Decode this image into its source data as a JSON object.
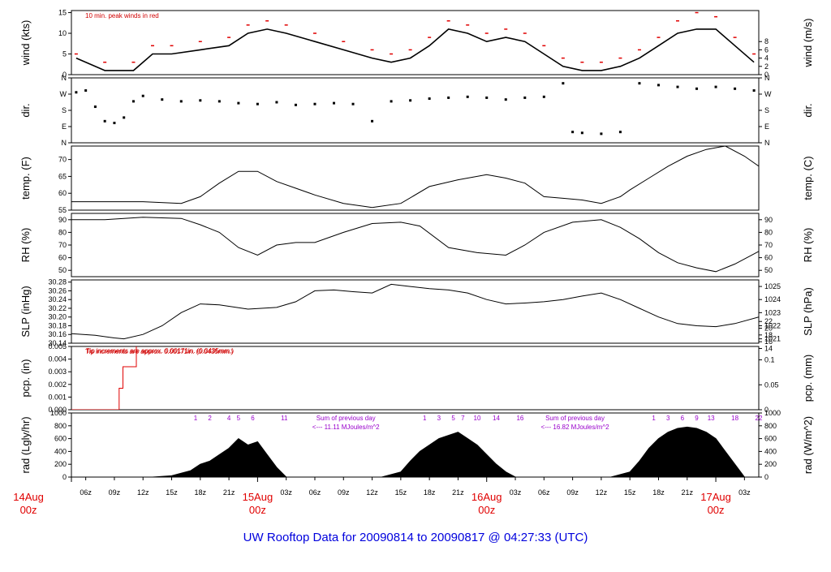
{
  "colors": {
    "frame": "#000000",
    "accent_red": "#e00000",
    "purple": "#9900cc",
    "title_blue": "#0000dd"
  },
  "title": "UW Rooftop Data for 20090814  to  20090817 @ 04:27:33  (UTC)",
  "x_axis": {
    "hour_labels": [
      "06z",
      "09z",
      "12z",
      "15z",
      "18z",
      "21z",
      "03z",
      "06z",
      "09z",
      "12z",
      "15z",
      "18z",
      "21z",
      "03z",
      "06z",
      "09z",
      "12z",
      "15z",
      "18z",
      "21z",
      "03z"
    ],
    "hour_values": [
      6,
      9,
      12,
      15,
      18,
      21,
      27,
      30,
      33,
      36,
      39,
      42,
      45,
      51,
      54,
      57,
      60,
      63,
      66,
      69,
      75
    ],
    "day_labels": [
      {
        "top": "14Aug",
        "bottom": "00z",
        "hour": 0
      },
      {
        "top": "15Aug",
        "bottom": "00z",
        "hour": 24
      },
      {
        "top": "16Aug",
        "bottom": "00z",
        "hour": 48
      },
      {
        "top": "17Aug",
        "bottom": "00z",
        "hour": 72
      }
    ],
    "range_hours": [
      4.5,
      76.5
    ]
  },
  "chart_data": [
    {
      "type": "line",
      "name": "wind",
      "ylabel_left": "wind (kts)",
      "ylabel_right": "wind (m/s)",
      "ylim": [
        0,
        15.5
      ],
      "left_ticks": [
        "0",
        "5",
        "10",
        "15"
      ],
      "left_tick_values": [
        0,
        5,
        10,
        15
      ],
      "right_ticks": [
        "0",
        "2",
        "4",
        "6",
        "8"
      ],
      "right_tick_values": [
        0,
        2,
        4,
        6,
        8
      ],
      "annotation": "10 min. peak winds in red",
      "x": [
        5,
        8,
        11,
        13,
        15,
        18,
        21,
        23,
        25,
        27,
        30,
        33,
        36,
        38,
        40,
        42,
        44,
        46,
        48,
        50,
        52,
        54,
        56,
        58,
        60,
        62,
        64,
        66,
        68,
        70,
        72,
        74,
        76
      ],
      "values": [
        4,
        1,
        1,
        5,
        5,
        6,
        7,
        10,
        11,
        10,
        8,
        6,
        4,
        3,
        4,
        7,
        11,
        10,
        8,
        9,
        8,
        5,
        2,
        1,
        1,
        2,
        4,
        7,
        10,
        11,
        11,
        7,
        3
      ],
      "peaks": [
        5,
        3,
        3,
        7,
        7,
        8,
        9,
        12,
        13,
        12,
        10,
        8,
        6,
        5,
        6,
        9,
        13,
        12,
        10,
        11,
        10,
        7,
        4,
        3,
        3,
        4,
        6,
        9,
        13,
        15,
        14,
        9,
        5
      ]
    },
    {
      "type": "scatter",
      "name": "dir",
      "ylabel_left": "dir.",
      "ylabel_right": "dir.",
      "ylim": [
        0,
        360
      ],
      "left_ticks": [
        "N",
        "E",
        "S",
        "W",
        "N"
      ],
      "left_tick_values": [
        0,
        90,
        180,
        270,
        360
      ],
      "right_ticks": [
        "N",
        "E",
        "S",
        "W",
        "N"
      ],
      "right_tick_values": [
        0,
        90,
        180,
        270,
        360
      ],
      "x": [
        5,
        6,
        7,
        8,
        9,
        10,
        11,
        12,
        14,
        16,
        18,
        20,
        22,
        24,
        26,
        28,
        30,
        32,
        34,
        36,
        38,
        40,
        42,
        44,
        46,
        48,
        50,
        52,
        54,
        56,
        57,
        58,
        60,
        62,
        64,
        66,
        68,
        70,
        72,
        74,
        76
      ],
      "values": [
        280,
        290,
        200,
        120,
        110,
        140,
        230,
        260,
        240,
        230,
        235,
        230,
        220,
        215,
        225,
        210,
        215,
        220,
        215,
        120,
        230,
        235,
        245,
        250,
        255,
        250,
        240,
        250,
        255,
        330,
        60,
        55,
        50,
        60,
        330,
        320,
        310,
        300,
        310,
        300,
        290
      ]
    },
    {
      "type": "line",
      "name": "temp",
      "ylabel_left": "temp. (F)",
      "ylabel_right": "temp. (C)",
      "ylim": [
        55,
        74
      ],
      "left_ticks": [
        "55",
        "60",
        "65",
        "70"
      ],
      "left_tick_values": [
        55,
        60,
        65,
        70
      ],
      "right_ticks": [
        "14",
        "16",
        "18",
        "20",
        "22"
      ],
      "right_tick_values": [
        14,
        16,
        18,
        20,
        22
      ],
      "x": [
        4.5,
        8,
        12,
        16,
        18,
        20,
        22,
        24,
        26,
        28,
        30,
        33,
        36,
        39,
        42,
        45,
        48,
        50,
        52,
        54,
        56,
        58,
        60,
        62,
        63,
        65,
        67,
        69,
        71,
        73,
        75,
        76.5
      ],
      "values": [
        57.5,
        57.5,
        57.5,
        57,
        59,
        63,
        66.5,
        66.5,
        63.5,
        61.5,
        59.5,
        57,
        55.8,
        57,
        62,
        64,
        65.5,
        64.5,
        63,
        59,
        58.5,
        58,
        57,
        59,
        61,
        64.5,
        68,
        71,
        73,
        74,
        71,
        68
      ]
    },
    {
      "type": "line",
      "name": "rh",
      "ylabel_left": "RH (%)",
      "ylabel_right": "RH (%)",
      "ylim": [
        45,
        95
      ],
      "left_ticks": [
        "50",
        "60",
        "70",
        "80",
        "90"
      ],
      "left_tick_values": [
        50,
        60,
        70,
        80,
        90
      ],
      "right_ticks": [
        "50",
        "60",
        "70",
        "80",
        "90"
      ],
      "right_tick_values": [
        50,
        60,
        70,
        80,
        90
      ],
      "x": [
        4.5,
        8,
        12,
        16,
        18,
        20,
        22,
        24,
        26,
        28,
        30,
        33,
        36,
        39,
        41,
        44,
        47,
        50,
        52,
        54,
        57,
        60,
        62,
        64,
        66,
        68,
        70,
        72,
        74,
        76.5
      ],
      "values": [
        90,
        90,
        92,
        91,
        86,
        80,
        68,
        62,
        70,
        72,
        72,
        80,
        87,
        88,
        85,
        68,
        64,
        62,
        70,
        80,
        88,
        90,
        84,
        75,
        64,
        56,
        52,
        49,
        55,
        65
      ]
    },
    {
      "type": "line",
      "name": "slp",
      "ylabel_left": "SLP (inHg)",
      "ylabel_right": "SLP (hPa)",
      "ylim": [
        30.14,
        30.285
      ],
      "left_ticks": [
        "30.14",
        "30.16",
        "30.18",
        "30.20",
        "30.22",
        "30.24",
        "30.26",
        "30.28"
      ],
      "left_tick_values": [
        30.14,
        30.16,
        30.18,
        30.2,
        30.22,
        30.24,
        30.26,
        30.28
      ],
      "right_ticks": [
        "1021",
        "1022",
        "1023",
        "1024",
        "1025"
      ],
      "right_tick_values": [
        30.15,
        30.18,
        30.21,
        30.24,
        30.27
      ],
      "x": [
        4.5,
        7,
        9,
        10,
        12,
        14,
        16,
        18,
        20,
        23,
        26,
        28,
        30,
        32,
        34,
        36,
        38,
        40,
        42,
        44,
        46,
        48,
        50,
        52,
        54,
        56,
        58,
        60,
        62,
        64,
        66,
        68,
        70,
        72,
        74,
        76.5
      ],
      "values": [
        30.162,
        30.158,
        30.152,
        30.15,
        30.16,
        30.18,
        30.21,
        30.23,
        30.228,
        30.218,
        30.222,
        30.235,
        30.26,
        30.262,
        30.258,
        30.255,
        30.275,
        30.27,
        30.265,
        30.262,
        30.255,
        30.24,
        30.23,
        30.232,
        30.235,
        30.24,
        30.248,
        30.255,
        30.24,
        30.22,
        30.2,
        30.185,
        30.18,
        30.178,
        30.185,
        30.2
      ]
    },
    {
      "type": "line",
      "name": "pcp",
      "ylabel_left": "pcp. (in)",
      "ylabel_right": "pcp. (mm)",
      "ylim": [
        0,
        0.005
      ],
      "left_ticks": [
        "0.000",
        "0.001",
        "0.002",
        "0.003",
        "0.004",
        "0.005"
      ],
      "left_tick_values": [
        0,
        0.001,
        0.002,
        0.003,
        0.004,
        0.005
      ],
      "right_ticks": [
        "0",
        "0.05",
        "0.1"
      ],
      "right_tick_values": [
        0,
        0.00197,
        0.00394
      ],
      "annotation": "Tip increments are approx. 0.00171in. (0.0435mm.)",
      "x": [
        4.5,
        9.5,
        9.5,
        9.9,
        9.9,
        11.3,
        11.3,
        76.5
      ],
      "values": [
        0,
        0,
        0.0017,
        0.0017,
        0.0034,
        0.0034,
        0.0052,
        0.0052
      ]
    },
    {
      "type": "area",
      "name": "rad",
      "ylabel_left": "rad (Lgly/hr)",
      "ylabel_right": "rad (W/m^2)",
      "ylim": [
        0,
        1000
      ],
      "left_ticks": [
        "0",
        "200",
        "400",
        "600",
        "800",
        "1000"
      ],
      "left_tick_values": [
        0,
        200,
        400,
        600,
        800,
        1000
      ],
      "right_ticks": [
        "0",
        "200",
        "400",
        "600",
        "800",
        "1000"
      ],
      "right_tick_values": [
        0,
        200,
        400,
        600,
        800,
        1000
      ],
      "x": [
        13,
        15,
        17,
        18,
        19,
        20,
        21,
        22,
        23,
        24,
        25,
        26,
        27,
        37,
        39,
        40,
        41,
        42,
        43,
        44,
        45,
        46,
        47,
        48,
        49,
        50,
        51,
        61,
        63,
        64,
        65,
        66,
        67,
        68,
        69,
        70,
        71,
        72,
        73,
        74,
        75
      ],
      "values": [
        0,
        20,
        100,
        200,
        250,
        350,
        450,
        600,
        500,
        550,
        350,
        150,
        0,
        0,
        80,
        250,
        400,
        500,
        600,
        650,
        700,
        600,
        500,
        350,
        200,
        80,
        0,
        0,
        80,
        250,
        450,
        600,
        700,
        760,
        780,
        760,
        700,
        600,
        400,
        200,
        0
      ],
      "hour_marks": [
        "1",
        "2",
        "4",
        "5",
        "6",
        "11",
        "1",
        "3",
        "5",
        "7",
        "10",
        "14",
        "16",
        "1",
        "3",
        "6",
        "9",
        "13",
        "18",
        "22"
      ],
      "hour_mark_positions": [
        17.5,
        19,
        21,
        22,
        23.5,
        26.8,
        41.5,
        43,
        44.5,
        45.5,
        47,
        49,
        51.5,
        65.5,
        67,
        68.5,
        70,
        71.5,
        74,
        76.5
      ],
      "sum_notes": [
        {
          "line1": "Sum of previous day",
          "line2": "<--- 11.11 MJoules/m^2",
          "hour": 29
        },
        {
          "line1": "Sum of previous day",
          "line2": "<--- 16.82 MJoules/m^2",
          "hour": 53
        }
      ]
    }
  ]
}
